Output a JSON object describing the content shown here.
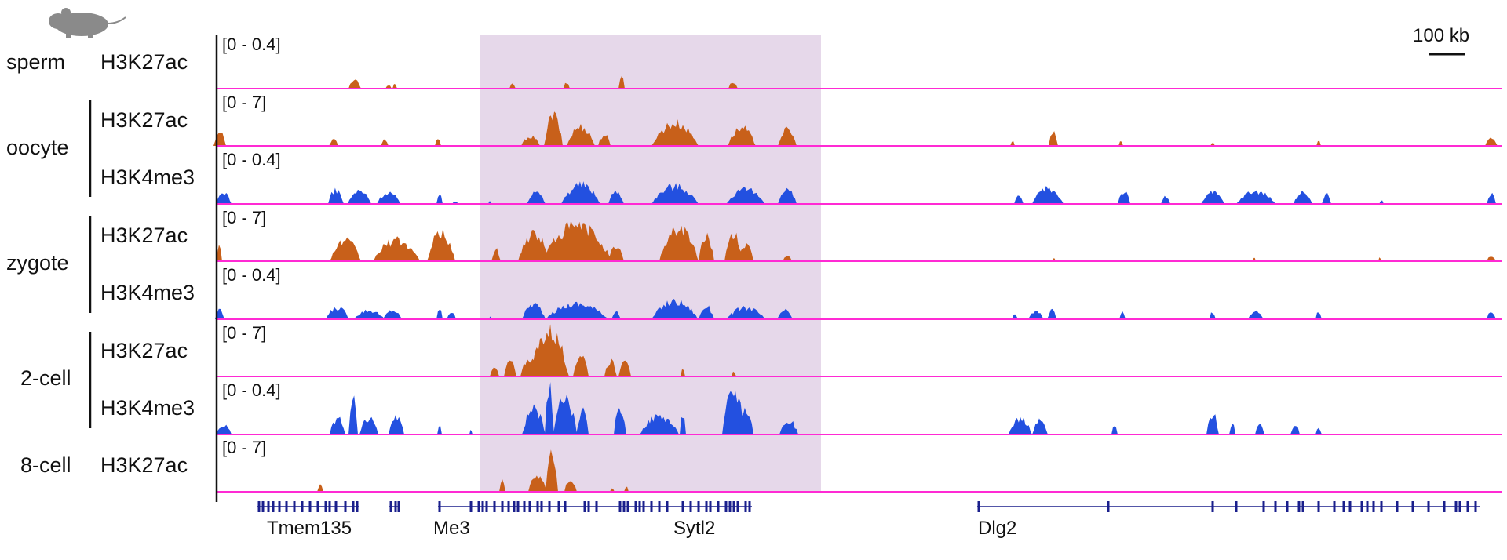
{
  "scale_bar": {
    "label": "100 kb"
  },
  "colors": {
    "h3k27ac": "#c8601a",
    "h3k4me3": "#2350e0",
    "baseline": "#ff2ad4",
    "highlight": "#e6d8ea",
    "gene": "#1a1f8c"
  },
  "icon": "mouse-icon",
  "stages": [
    {
      "name": "sperm"
    },
    {
      "name": "oocyte"
    },
    {
      "name": "zygote"
    },
    {
      "name": "2-cell"
    },
    {
      "name": "8-cell"
    }
  ],
  "tracks": [
    {
      "stage": "sperm",
      "mark": "H3K27ac",
      "range": "[0 - 0.4]"
    },
    {
      "stage": "oocyte",
      "mark": "H3K27ac",
      "range": "[0 - 7]"
    },
    {
      "stage": "oocyte",
      "mark": "H3K4me3",
      "range": "[0 - 0.4]"
    },
    {
      "stage": "zygote",
      "mark": "H3K27ac",
      "range": "[0 - 7]"
    },
    {
      "stage": "zygote",
      "mark": "H3K4me3",
      "range": "[0 - 0.4]"
    },
    {
      "stage": "2-cell",
      "mark": "H3K27ac",
      "range": "[0 - 7]"
    },
    {
      "stage": "2-cell",
      "mark": "H3K4me3",
      "range": "[0 - 0.4]"
    },
    {
      "stage": "8-cell",
      "mark": "H3K27ac",
      "range": "[0 - 7]"
    }
  ],
  "genes": [
    {
      "name": "Tmem135"
    },
    {
      "name": "Me3"
    },
    {
      "name": "Sytl2"
    },
    {
      "name": "Dlg2"
    }
  ]
}
